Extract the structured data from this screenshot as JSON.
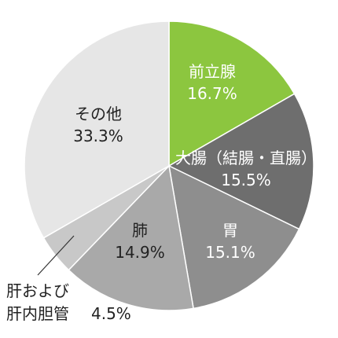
{
  "chart_data": {
    "type": "pie",
    "title": "",
    "slices": [
      {
        "label": "前立腺",
        "pct_text": "16.7%",
        "value": 16.7,
        "color": "#8cc63f",
        "label_color": "#ffffff"
      },
      {
        "label": "大腸（結腸・直腸）",
        "pct_text": "15.5%",
        "value": 15.5,
        "color": "#6e6e6e",
        "label_color": "#ffffff"
      },
      {
        "label": "胃",
        "pct_text": "15.1%",
        "value": 15.1,
        "color": "#8e8e8e",
        "label_color": "#ffffff"
      },
      {
        "label": "肺",
        "pct_text": "14.9%",
        "value": 14.9,
        "color": "#a9a9a9",
        "label_color": "#222222"
      },
      {
        "label_lines": [
          "肝および",
          "肝内胆管"
        ],
        "pct_text": "4.5%",
        "value": 4.5,
        "color": "#c8c8c8",
        "label_color": "#222222"
      },
      {
        "label": "その他",
        "pct_text": "33.3%",
        "value": 33.3,
        "color": "#e6e6e6",
        "label_color": "#222222"
      }
    ],
    "start_angle": "12 o'clock",
    "direction": "clockwise",
    "legend": "none"
  }
}
